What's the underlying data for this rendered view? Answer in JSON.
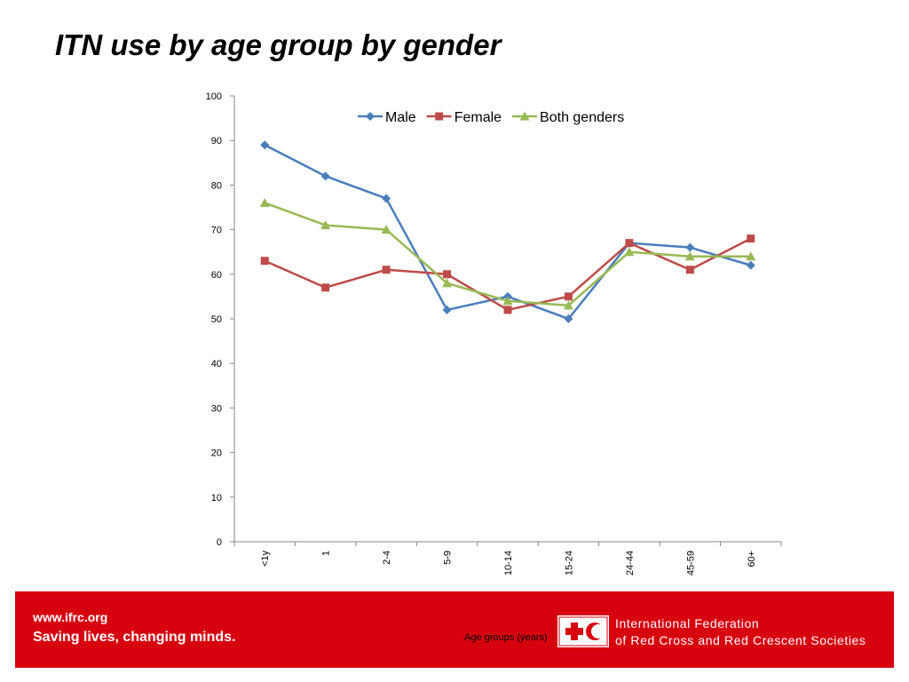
{
  "slide": {
    "title": "ITN use by age group by gender"
  },
  "footer": {
    "url": "www.ifrc.org",
    "slogan": "Saving lives, changing minds.",
    "org_line1": "International Federation",
    "org_line2": "of Red Cross and Red Crescent Societies"
  },
  "colors": {
    "footer_bg": "#d7000f",
    "male": "#4a7ebb",
    "female": "#be4b48",
    "both": "#98b954"
  },
  "chart_data": {
    "type": "line",
    "title": "",
    "xlabel": "Age groups (years)",
    "ylabel": "",
    "ylim": [
      0,
      100
    ],
    "yticks": [
      0,
      10,
      20,
      30,
      40,
      50,
      60,
      70,
      80,
      90,
      100
    ],
    "categories": [
      "<1y",
      "1",
      "2-4",
      "5-9",
      "10-14",
      "15-24",
      "24-44",
      "45-59",
      "60+"
    ],
    "grid": false,
    "legend_position": "top",
    "series": [
      {
        "name": "Male",
        "color": "#4a7ebb",
        "marker": "diamond",
        "values": [
          89,
          82,
          77,
          52,
          55,
          50,
          67,
          66,
          62
        ]
      },
      {
        "name": "Female",
        "color": "#be4b48",
        "marker": "square",
        "values": [
          63,
          57,
          61,
          60,
          52,
          55,
          67,
          61,
          68
        ]
      },
      {
        "name": "Both genders",
        "color": "#98b954",
        "marker": "triangle",
        "values": [
          76,
          71,
          70,
          58,
          54,
          53,
          65,
          64,
          64
        ]
      }
    ]
  }
}
